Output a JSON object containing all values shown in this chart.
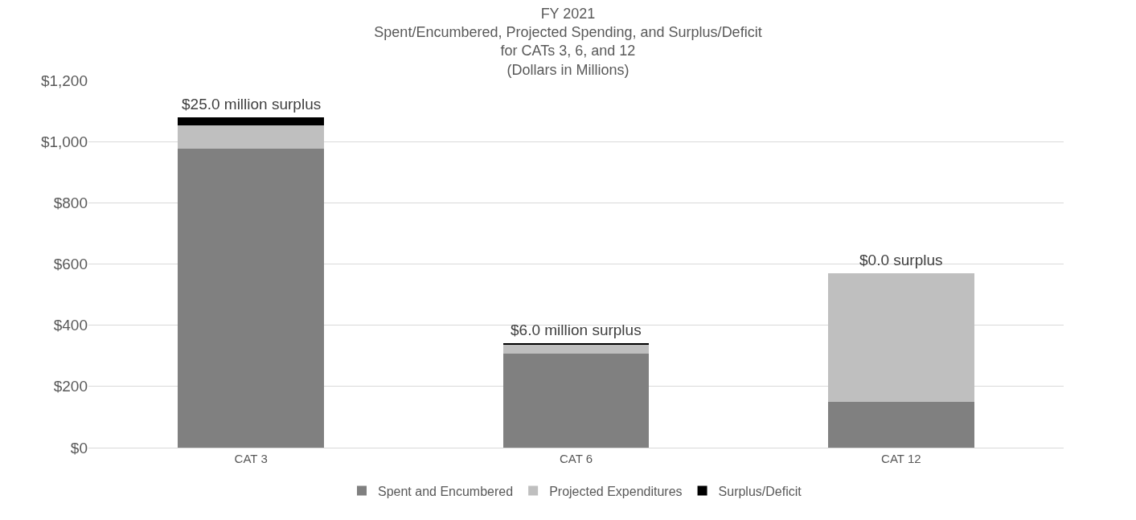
{
  "chart_data": {
    "type": "bar",
    "title": "FY 2021\nSpent/Encumbered, Projected Spending, and Surplus/Deficit\nfor CATs 3, 6, and 12\n(Dollars in Millions)",
    "categories": [
      "CAT 3",
      "CAT 6",
      "CAT 12"
    ],
    "stacked": true,
    "series": [
      {
        "name": "Spent and Encumbered",
        "color": "#808080",
        "values": [
          978,
          308,
          150
        ]
      },
      {
        "name": "Projected Expenditures",
        "color": "#bfbfbf",
        "values": [
          76,
          28,
          419
        ]
      },
      {
        "name": "Surplus/Deficit",
        "color": "#000000",
        "values": [
          25,
          6,
          0
        ]
      }
    ],
    "ylim": [
      0,
      1200
    ],
    "yticks": [
      {
        "value": 0,
        "label": "$0"
      },
      {
        "value": 200,
        "label": "$200"
      },
      {
        "value": 400,
        "label": "$400"
      },
      {
        "value": 600,
        "label": "$600"
      },
      {
        "value": 800,
        "label": "$800"
      },
      {
        "value": 1000,
        "label": "$1,000"
      },
      {
        "value": 1200,
        "label": "$1,200"
      }
    ],
    "grid": "y",
    "legend": "bottom",
    "annotations": [
      {
        "text": "$25.0 million surplus",
        "x": "CAT 3",
        "y": 1079
      },
      {
        "text": "$6.0 million surplus",
        "x": "CAT 6",
        "y": 342
      },
      {
        "text": "$0.0 surplus",
        "x": "CAT 12",
        "y": 569
      }
    ]
  }
}
